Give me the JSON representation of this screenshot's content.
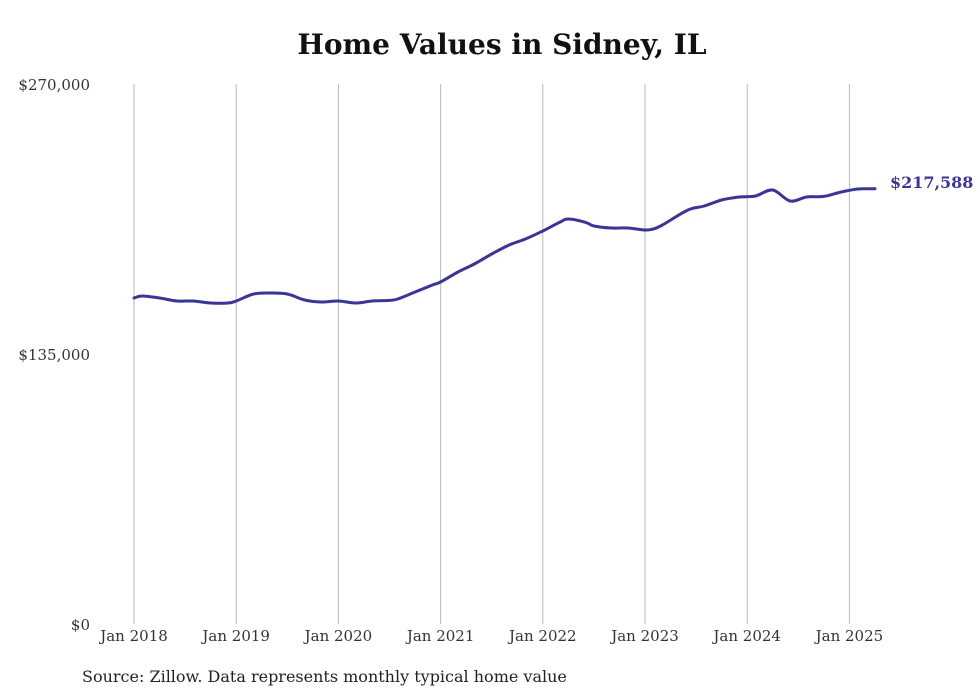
{
  "chart_data": {
    "type": "line",
    "title": "Home Values in Sidney, IL",
    "source": "Source: Zillow. Data represents monthly typical home value",
    "xlabel": "",
    "ylabel": "",
    "ylim": [
      0,
      270000
    ],
    "y_ticks": [
      {
        "value": 0,
        "label": "$0"
      },
      {
        "value": 135000,
        "label": "$135,000"
      },
      {
        "value": 270000,
        "label": "$270,000"
      }
    ],
    "x_ticks": [
      {
        "value": 2018,
        "label": "Jan 2018"
      },
      {
        "value": 2019,
        "label": "Jan 2019"
      },
      {
        "value": 2020,
        "label": "Jan 2020"
      },
      {
        "value": 2021,
        "label": "Jan 2021"
      },
      {
        "value": 2022,
        "label": "Jan 2022"
      },
      {
        "value": 2023,
        "label": "Jan 2023"
      },
      {
        "value": 2024,
        "label": "Jan 2024"
      },
      {
        "value": 2025,
        "label": "Jan 2025"
      }
    ],
    "xlim": [
      2018,
      2025.25
    ],
    "grid": "vertical",
    "line_color": "#3b3598",
    "end_label": "$217,588",
    "series": [
      {
        "x": [
          2018.0,
          2018.08,
          2018.25,
          2018.42,
          2018.58,
          2018.75,
          2018.92,
          2019.0,
          2019.17,
          2019.33,
          2019.5,
          2019.67,
          2019.83,
          2020.0,
          2020.17,
          2020.33,
          2020.5,
          2020.58,
          2020.75,
          2020.92,
          2021.0,
          2021.17,
          2021.33,
          2021.5,
          2021.67,
          2021.83,
          2022.0,
          2022.17,
          2022.25,
          2022.42,
          2022.5,
          2022.67,
          2022.83,
          2023.0,
          2023.08,
          2023.17,
          2023.42,
          2023.58,
          2023.75,
          2023.92,
          2024.08,
          2024.25,
          2024.42,
          2024.58,
          2024.75,
          2024.92,
          2025.08,
          2025.17,
          2025.25
        ],
        "y": [
          163000,
          164000,
          163000,
          161500,
          161500,
          160500,
          160500,
          161500,
          165000,
          165500,
          165000,
          162000,
          161000,
          161500,
          160500,
          161500,
          161800,
          162500,
          166000,
          169500,
          171000,
          176000,
          180000,
          185000,
          189500,
          192500,
          196500,
          201000,
          202500,
          200800,
          199000,
          198000,
          198000,
          197000,
          197500,
          199500,
          207000,
          209000,
          212000,
          213500,
          214000,
          217000,
          211500,
          213500,
          213800,
          216000,
          217500,
          217600,
          217588
        ]
      }
    ]
  }
}
